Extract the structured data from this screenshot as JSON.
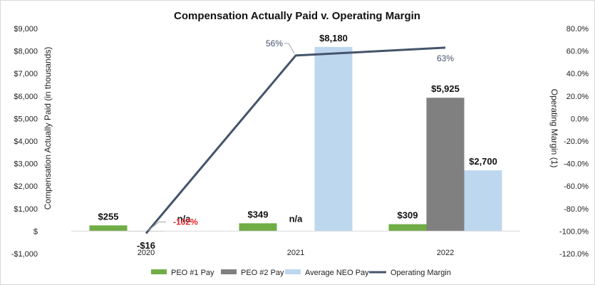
{
  "chart_data": {
    "type": "bar",
    "title": "Compensation Actually Paid v. Operating Margin",
    "categories": [
      "2020",
      "2021",
      "2022"
    ],
    "ylabel": "Compensation Actually Paid (in thousands)",
    "y2label": "Operating Margin (1)",
    "ylim": [
      -1000,
      9000
    ],
    "y_ticks": [
      "-$1,000",
      "$",
      "$1,000",
      "$2,000",
      "$3,000",
      "$4,000",
      "$5,000",
      "$6,000",
      "$7,000",
      "$8,000",
      "$9,000"
    ],
    "y2lim": [
      -120,
      80
    ],
    "y2_ticks": [
      "-120.0%",
      "-100.0%",
      "-80.0%",
      "-60.0%",
      "-40.0%",
      "-20.0%",
      "0.0%",
      "20.0%",
      "40.0%",
      "60.0%",
      "80.0%"
    ],
    "series": [
      {
        "name": "PEO #1 Pay",
        "color": "#70ad47",
        "values": [
          255,
          349,
          309
        ],
        "labels": [
          "$255",
          "$349",
          "$309"
        ]
      },
      {
        "name": "PEO #2 Pay",
        "color": "#808080",
        "values": [
          -16,
          null,
          5925
        ],
        "labels": [
          "-$16",
          "n/a",
          "$5,925"
        ]
      },
      {
        "name": "Average NEO Pay",
        "color": "#bdd7ee",
        "values": [
          null,
          8180,
          2700
        ],
        "labels": [
          "n/a",
          "$8,180",
          "$2,700"
        ]
      }
    ],
    "line_series": {
      "name": "Operating Margin",
      "color": "#44546a",
      "axis": "secondary",
      "values": [
        -102,
        56,
        63
      ],
      "labels": [
        "-102%",
        "56%",
        "63%"
      ]
    },
    "legend": "bottom",
    "grid": false
  }
}
